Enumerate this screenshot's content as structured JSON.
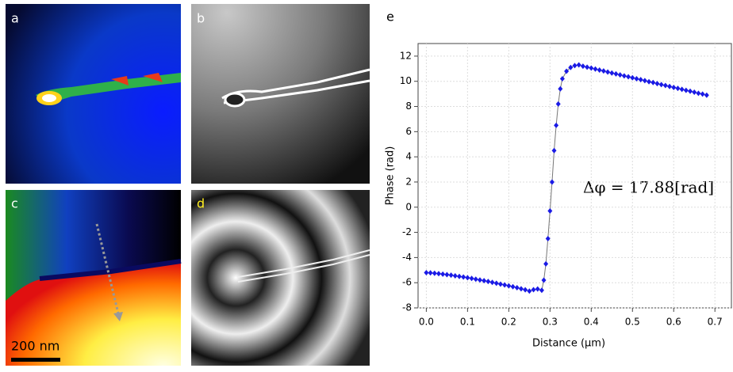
{
  "panels": {
    "labels": [
      "a",
      "b",
      "c",
      "d",
      "e"
    ],
    "scale_bar": "200 nm"
  },
  "chart_data": {
    "type": "scatter",
    "xlabel": "Distance (μm)",
    "ylabel": "Phase (rad)",
    "annotation": "Δφ  = 17.88[rad]",
    "x": [
      0,
      0.01,
      0.02,
      0.03,
      0.04,
      0.05,
      0.06,
      0.07,
      0.08,
      0.09,
      0.1,
      0.11,
      0.12,
      0.13,
      0.14,
      0.15,
      0.16,
      0.17,
      0.18,
      0.19,
      0.2,
      0.21,
      0.22,
      0.23,
      0.24,
      0.25,
      0.26,
      0.27,
      0.28,
      0.285,
      0.29,
      0.295,
      0.3,
      0.305,
      0.31,
      0.315,
      0.32,
      0.325,
      0.33,
      0.34,
      0.35,
      0.36,
      0.37,
      0.38,
      0.39,
      0.4,
      0.41,
      0.42,
      0.43,
      0.44,
      0.45,
      0.46,
      0.47,
      0.48,
      0.49,
      0.5,
      0.51,
      0.52,
      0.53,
      0.54,
      0.55,
      0.56,
      0.57,
      0.58,
      0.59,
      0.6,
      0.61,
      0.62,
      0.63,
      0.64,
      0.65,
      0.66,
      0.67,
      0.68
    ],
    "series": [
      {
        "color": "#1a1ae6",
        "line_color": "#777777",
        "values": [
          -5.2,
          -5.22,
          -5.25,
          -5.28,
          -5.32,
          -5.36,
          -5.4,
          -5.45,
          -5.5,
          -5.55,
          -5.6,
          -5.66,
          -5.72,
          -5.78,
          -5.84,
          -5.9,
          -5.97,
          -6.04,
          -6.11,
          -6.18,
          -6.25,
          -6.32,
          -6.4,
          -6.48,
          -6.56,
          -6.66,
          -6.55,
          -6.5,
          -6.6,
          -5.8,
          -4.5,
          -2.5,
          -0.3,
          2,
          4.5,
          6.5,
          8.2,
          9.4,
          10.2,
          10.8,
          11.1,
          11.25,
          11.3,
          11.2,
          11.12,
          11.05,
          10.97,
          10.89,
          10.82,
          10.74,
          10.66,
          10.59,
          10.51,
          10.43,
          10.36,
          10.28,
          10.2,
          10.13,
          10.05,
          9.97,
          9.9,
          9.82,
          9.74,
          9.67,
          9.59,
          9.51,
          9.44,
          9.36,
          9.28,
          9.21,
          9.13,
          9.05,
          8.98,
          8.9
        ]
      }
    ],
    "xlim": [
      -0.02,
      0.74
    ],
    "ylim": [
      -8,
      13
    ],
    "xticks": [
      {
        "value": 0,
        "label": "0.0"
      },
      0.1,
      0.2,
      0.3,
      0.4,
      0.5,
      0.6,
      0.7
    ],
    "yticks": [
      -8,
      -6,
      -4,
      -2,
      0,
      2,
      4,
      6,
      8,
      10,
      12
    ],
    "grid": true
  }
}
